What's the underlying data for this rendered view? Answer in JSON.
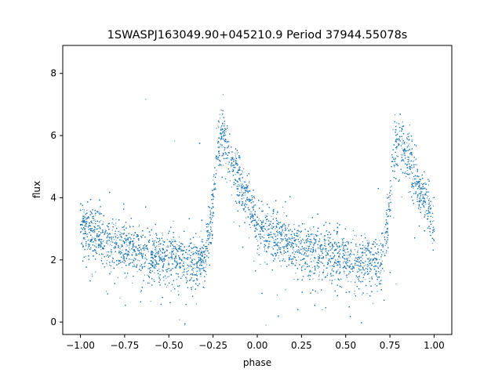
{
  "chart_data": {
    "type": "scatter",
    "title": "1SWASPJ163049.90+045210.9 Period 37944.55078s",
    "xlabel": "phase",
    "ylabel": "flux",
    "xlim": [
      -1.1,
      1.1
    ],
    "ylim": [
      -0.4,
      8.9
    ],
    "x_ticks": [
      -1.0,
      -0.75,
      -0.5,
      -0.25,
      0.0,
      0.25,
      0.5,
      0.75,
      1.0
    ],
    "x_tick_labels": [
      "−1.00",
      "−0.75",
      "−0.50",
      "−0.25",
      "0.00",
      "0.25",
      "0.50",
      "0.75",
      "1.00"
    ],
    "y_ticks": [
      0,
      2,
      4,
      6,
      8
    ],
    "y_tick_labels": [
      "0",
      "2",
      "4",
      "6",
      "8"
    ],
    "grid": false,
    "point_color": "#1f77b4",
    "x_range": [
      -1.0,
      1.0
    ],
    "phase_folded": true,
    "light_curve_template": {
      "phase": [
        0.0,
        0.1,
        0.2,
        0.3,
        0.4,
        0.5,
        0.6,
        0.65,
        0.7,
        0.74,
        0.77,
        0.8,
        0.85,
        0.9,
        0.95,
        1.0
      ],
      "flux": [
        3.1,
        2.75,
        2.5,
        2.3,
        2.15,
        2.05,
        1.95,
        1.9,
        1.95,
        3.2,
        5.4,
        6.0,
        5.3,
        4.6,
        3.9,
        3.1
      ]
    }
  }
}
